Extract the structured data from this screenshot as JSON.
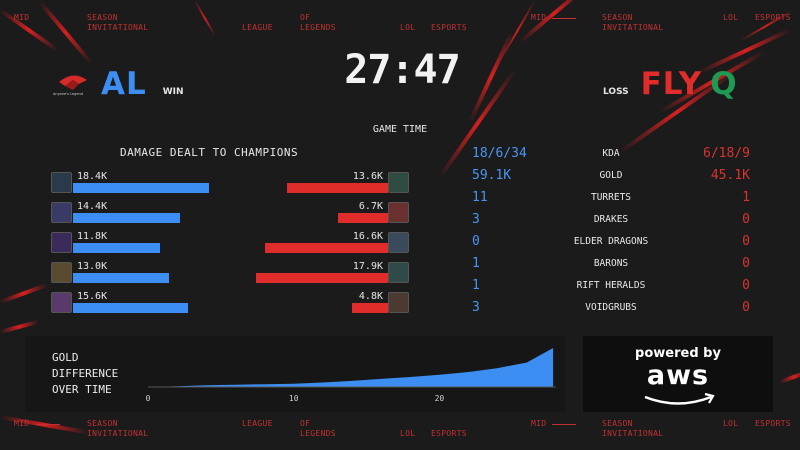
{
  "ticker": {
    "mid": "MID",
    "season": "SEASON",
    "invitational": "INVITATIONAL",
    "league": "LEAGUE",
    "of": "OF",
    "legends": "LEGENDS",
    "lol": "LOL",
    "esports": "ESPORTS"
  },
  "header": {
    "timer": "27:47",
    "game_time_label": "GAME TIME",
    "blue_team": {
      "tag": "AL",
      "result": "WIN",
      "logo_caption": "Anyone's Legend",
      "color": "#3d8ef2"
    },
    "red_team": {
      "tag": "FLY",
      "result": "LOSS",
      "logo_glyph": "Q",
      "color": "#e12c2c"
    }
  },
  "damage": {
    "title": "DAMAGE DEALT TO CHAMPIONS",
    "blue": [
      {
        "value": "18.4K",
        "amount": 18.4
      },
      {
        "value": "14.4K",
        "amount": 14.4
      },
      {
        "value": "11.8K",
        "amount": 11.8
      },
      {
        "value": "13.0K",
        "amount": 13.0
      },
      {
        "value": "15.6K",
        "amount": 15.6
      }
    ],
    "red": [
      {
        "value": "13.6K",
        "amount": 13.6
      },
      {
        "value": "6.7K",
        "amount": 6.7
      },
      {
        "value": "16.6K",
        "amount": 16.6
      },
      {
        "value": "17.9K",
        "amount": 17.9
      },
      {
        "value": "4.8K",
        "amount": 4.8
      }
    ]
  },
  "stats": [
    {
      "label": "KDA",
      "blue": "18/6/34",
      "red": "6/18/9"
    },
    {
      "label": "GOLD",
      "blue": "59.1K",
      "red": "45.1K"
    },
    {
      "label": "TURRETS",
      "blue": "11",
      "red": "1"
    },
    {
      "label": "DRAKES",
      "blue": "3",
      "red": "0"
    },
    {
      "label": "ELDER DRAGONS",
      "blue": "0",
      "red": "0"
    },
    {
      "label": "BARONS",
      "blue": "1",
      "red": "0"
    },
    {
      "label": "RIFT HERALDS",
      "blue": "1",
      "red": "0"
    },
    {
      "label": "VOIDGRUBS",
      "blue": "3",
      "red": "0"
    }
  ],
  "gold_graph": {
    "label_line1": "GOLD",
    "label_line2": "DIFFERENCE",
    "label_line3": "OVER TIME",
    "x_ticks": [
      "0",
      "10",
      "20"
    ],
    "fill_color": "#3d8ef2"
  },
  "chart_data": {
    "type": "area",
    "x": [
      0,
      2,
      4,
      6,
      8,
      10,
      12,
      14,
      16,
      18,
      20,
      22,
      24,
      26,
      27.8
    ],
    "series": [
      {
        "values": [
          0,
          0.3,
          0.6,
          0.8,
          1.0,
          1.2,
          1.6,
          2.2,
          2.9,
          3.6,
          4.4,
          5.4,
          6.8,
          8.8,
          14.0
        ]
      }
    ],
    "xlim": [
      0,
      28
    ],
    "x_ticks": [
      0,
      10,
      20
    ]
  },
  "sponsor": {
    "powered_by": "powered by",
    "brand": "aws"
  },
  "colors": {
    "blue": "#3d8ef2",
    "red": "#e12c2c",
    "background": "#1b1b1c",
    "accent_red": "#c23131"
  }
}
